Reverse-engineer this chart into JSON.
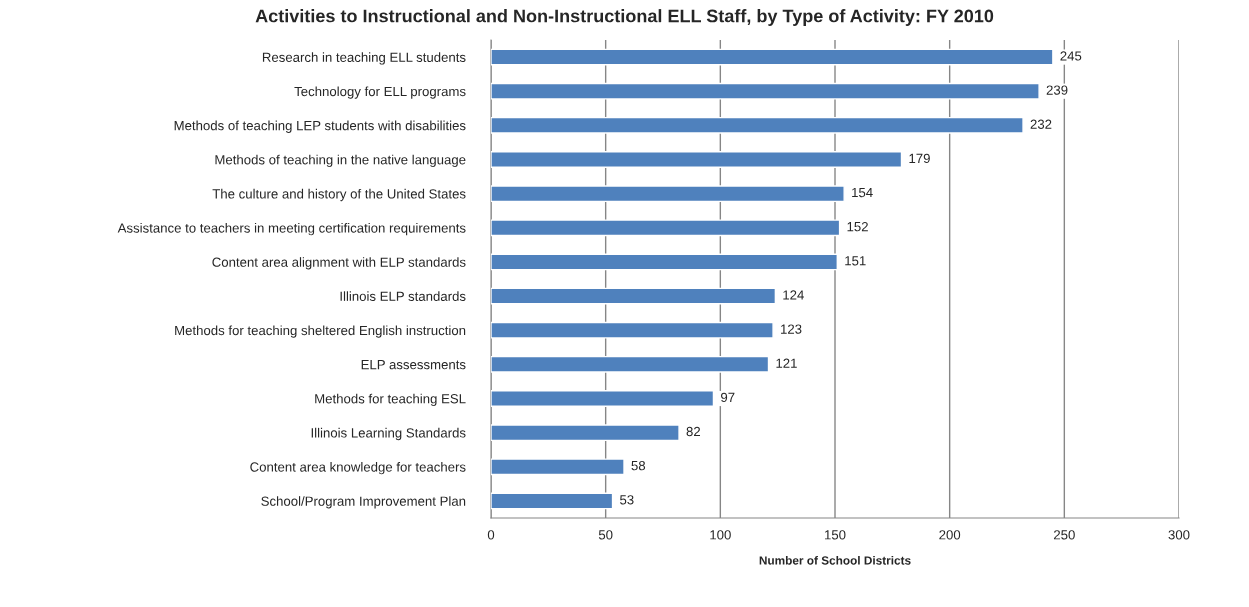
{
  "chart_data": {
    "type": "bar",
    "orientation": "horizontal",
    "title": "Activities to Instructional and Non-Instructional ELL Staff, by Type of Activity: FY 2010",
    "xlabel": "Number of School Districts",
    "categories": [
      "Research in teaching ELL students",
      "Technology for ELL programs",
      "Methods of teaching LEP students with disabilities",
      "Methods of teaching in the native language",
      "The culture and history of the United States",
      "Assistance to teachers in meeting certification requirements",
      "Content area alignment with ELP standards",
      "Illinois ELP standards",
      "Methods for teaching sheltered English instruction",
      "ELP assessments",
      "Methods for teaching ESL",
      "Illinois Learning Standards",
      "Content area knowledge for teachers",
      "School/Program Improvement Plan"
    ],
    "values": [
      245,
      239,
      232,
      179,
      154,
      152,
      151,
      124,
      123,
      121,
      97,
      82,
      58,
      53
    ],
    "color": "#4f81bd",
    "data_labels": true,
    "xlim": [
      0,
      300
    ],
    "xticks": [
      0,
      50,
      100,
      150,
      200,
      250,
      300
    ],
    "grid": "x",
    "legend": false
  }
}
